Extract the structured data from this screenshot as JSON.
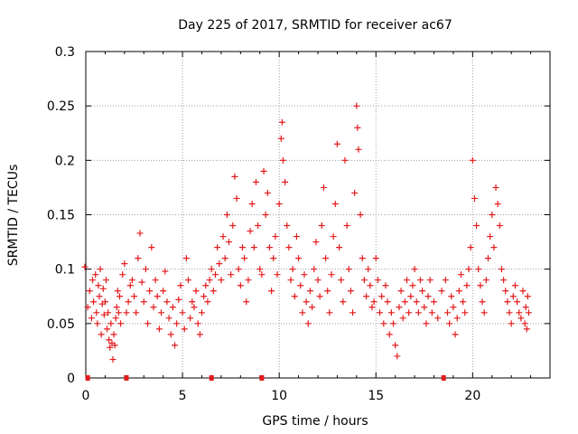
{
  "chart_data": {
    "type": "scatter",
    "title": "Day 225 of 2017, SRMTID for receiver ac67",
    "xlabel": "GPS time / hours",
    "ylabel": "SRMTID / TECUs",
    "xlim": [
      0,
      24
    ],
    "ylim": [
      0,
      0.3
    ],
    "grid": true,
    "marker": "+",
    "color": "#e41a1c",
    "xticks": [
      0,
      5,
      10,
      15,
      20
    ],
    "yticks": [
      0,
      0.05,
      0.1,
      0.15,
      0.2,
      0.25,
      0.3
    ],
    "xtick_labels": [
      "0",
      "5",
      "10",
      "15",
      "20"
    ],
    "ytick_labels": [
      "0",
      "0.05",
      "0.1",
      "0.15",
      "0.2",
      "0.25",
      "0.3"
    ],
    "zero_markers_x": [
      0.1,
      2.1,
      6.5,
      9.1,
      18.5
    ],
    "series": [
      {
        "name": "SRMTID",
        "points": [
          [
            -0.05,
            0.102
          ],
          [
            0.1,
            0.065
          ],
          [
            0.2,
            0.08
          ],
          [
            0.3,
            0.055
          ],
          [
            0.35,
            0.09
          ],
          [
            0.4,
            0.07
          ],
          [
            0.5,
            0.095
          ],
          [
            0.55,
            0.06
          ],
          [
            0.6,
            0.05
          ],
          [
            0.65,
            0.085
          ],
          [
            0.7,
            0.075
          ],
          [
            0.75,
            0.1
          ],
          [
            0.8,
            0.04
          ],
          [
            0.85,
            0.068
          ],
          [
            0.9,
            0.082
          ],
          [
            0.95,
            0.058
          ],
          [
            1.0,
            0.07
          ],
          [
            1.05,
            0.09
          ],
          [
            1.1,
            0.045
          ],
          [
            1.15,
            0.06
          ],
          [
            1.2,
            0.035
          ],
          [
            1.25,
            0.028
          ],
          [
            1.3,
            0.05
          ],
          [
            1.35,
            0.032
          ],
          [
            1.4,
            0.017
          ],
          [
            1.45,
            0.04
          ],
          [
            1.5,
            0.03
          ],
          [
            1.55,
            0.055
          ],
          [
            1.6,
            0.065
          ],
          [
            1.65,
            0.08
          ],
          [
            1.7,
            0.06
          ],
          [
            1.75,
            0.075
          ],
          [
            1.8,
            0.05
          ],
          [
            1.9,
            0.095
          ],
          [
            2.0,
            0.105
          ],
          [
            2.1,
            0.06
          ],
          [
            2.2,
            0.07
          ],
          [
            2.3,
            0.085
          ],
          [
            2.4,
            0.09
          ],
          [
            2.5,
            0.075
          ],
          [
            2.6,
            0.06
          ],
          [
            2.7,
            0.11
          ],
          [
            2.8,
            0.133
          ],
          [
            2.9,
            0.088
          ],
          [
            3.0,
            0.07
          ],
          [
            3.1,
            0.1
          ],
          [
            3.2,
            0.05
          ],
          [
            3.3,
            0.08
          ],
          [
            3.4,
            0.12
          ],
          [
            3.5,
            0.065
          ],
          [
            3.6,
            0.09
          ],
          [
            3.7,
            0.075
          ],
          [
            3.8,
            0.045
          ],
          [
            3.9,
            0.06
          ],
          [
            4.0,
            0.08
          ],
          [
            4.1,
            0.098
          ],
          [
            4.2,
            0.07
          ],
          [
            4.3,
            0.055
          ],
          [
            4.4,
            0.04
          ],
          [
            4.5,
            0.065
          ],
          [
            4.6,
            0.03
          ],
          [
            4.7,
            0.05
          ],
          [
            4.8,
            0.072
          ],
          [
            4.9,
            0.085
          ],
          [
            5.0,
            0.06
          ],
          [
            5.1,
            0.045
          ],
          [
            5.2,
            0.11
          ],
          [
            5.3,
            0.09
          ],
          [
            5.4,
            0.055
          ],
          [
            5.5,
            0.07
          ],
          [
            5.6,
            0.065
          ],
          [
            5.7,
            0.08
          ],
          [
            5.8,
            0.05
          ],
          [
            5.9,
            0.04
          ],
          [
            6.0,
            0.06
          ],
          [
            6.1,
            0.075
          ],
          [
            6.2,
            0.085
          ],
          [
            6.3,
            0.07
          ],
          [
            6.4,
            0.09
          ],
          [
            6.5,
            0.1
          ],
          [
            6.6,
            0.08
          ],
          [
            6.7,
            0.095
          ],
          [
            6.8,
            0.12
          ],
          [
            6.9,
            0.105
          ],
          [
            7.0,
            0.09
          ],
          [
            7.1,
            0.13
          ],
          [
            7.2,
            0.11
          ],
          [
            7.3,
            0.15
          ],
          [
            7.4,
            0.125
          ],
          [
            7.5,
            0.095
          ],
          [
            7.6,
            0.14
          ],
          [
            7.7,
            0.185
          ],
          [
            7.8,
            0.165
          ],
          [
            7.9,
            0.1
          ],
          [
            8.0,
            0.085
          ],
          [
            8.1,
            0.12
          ],
          [
            8.2,
            0.11
          ],
          [
            8.3,
            0.07
          ],
          [
            8.4,
            0.09
          ],
          [
            8.5,
            0.135
          ],
          [
            8.6,
            0.16
          ],
          [
            8.7,
            0.12
          ],
          [
            8.8,
            0.18
          ],
          [
            8.9,
            0.14
          ],
          [
            9.0,
            0.1
          ],
          [
            9.1,
            0.095
          ],
          [
            9.2,
            0.19
          ],
          [
            9.3,
            0.15
          ],
          [
            9.4,
            0.17
          ],
          [
            9.5,
            0.12
          ],
          [
            9.6,
            0.08
          ],
          [
            9.7,
            0.11
          ],
          [
            9.8,
            0.13
          ],
          [
            9.9,
            0.095
          ],
          [
            10.0,
            0.16
          ],
          [
            10.1,
            0.22
          ],
          [
            10.15,
            0.235
          ],
          [
            10.2,
            0.2
          ],
          [
            10.3,
            0.18
          ],
          [
            10.4,
            0.14
          ],
          [
            10.5,
            0.12
          ],
          [
            10.6,
            0.09
          ],
          [
            10.7,
            0.1
          ],
          [
            10.8,
            0.075
          ],
          [
            10.9,
            0.13
          ],
          [
            11.0,
            0.11
          ],
          [
            11.1,
            0.085
          ],
          [
            11.2,
            0.06
          ],
          [
            11.3,
            0.095
          ],
          [
            11.4,
            0.07
          ],
          [
            11.5,
            0.05
          ],
          [
            11.6,
            0.08
          ],
          [
            11.7,
            0.065
          ],
          [
            11.8,
            0.1
          ],
          [
            11.9,
            0.125
          ],
          [
            12.0,
            0.09
          ],
          [
            12.1,
            0.075
          ],
          [
            12.2,
            0.14
          ],
          [
            12.3,
            0.175
          ],
          [
            12.4,
            0.11
          ],
          [
            12.5,
            0.08
          ],
          [
            12.6,
            0.06
          ],
          [
            12.7,
            0.095
          ],
          [
            12.8,
            0.13
          ],
          [
            12.9,
            0.16
          ],
          [
            13.0,
            0.215
          ],
          [
            13.1,
            0.12
          ],
          [
            13.2,
            0.09
          ],
          [
            13.3,
            0.07
          ],
          [
            13.4,
            0.2
          ],
          [
            13.5,
            0.14
          ],
          [
            13.6,
            0.1
          ],
          [
            13.7,
            0.08
          ],
          [
            13.8,
            0.06
          ],
          [
            13.9,
            0.17
          ],
          [
            14.0,
            0.25
          ],
          [
            14.05,
            0.23
          ],
          [
            14.1,
            0.21
          ],
          [
            14.2,
            0.15
          ],
          [
            14.3,
            0.11
          ],
          [
            14.4,
            0.09
          ],
          [
            14.5,
            0.075
          ],
          [
            14.6,
            0.1
          ],
          [
            14.7,
            0.085
          ],
          [
            14.8,
            0.065
          ],
          [
            14.9,
            0.07
          ],
          [
            15.0,
            0.11
          ],
          [
            15.1,
            0.09
          ],
          [
            15.2,
            0.06
          ],
          [
            15.3,
            0.075
          ],
          [
            15.4,
            0.05
          ],
          [
            15.5,
            0.085
          ],
          [
            15.6,
            0.07
          ],
          [
            15.7,
            0.04
          ],
          [
            15.8,
            0.06
          ],
          [
            15.9,
            0.05
          ],
          [
            16.0,
            0.03
          ],
          [
            16.1,
            0.02
          ],
          [
            16.2,
            0.065
          ],
          [
            16.3,
            0.08
          ],
          [
            16.4,
            0.055
          ],
          [
            16.5,
            0.07
          ],
          [
            16.6,
            0.09
          ],
          [
            16.7,
            0.06
          ],
          [
            16.8,
            0.075
          ],
          [
            16.9,
            0.085
          ],
          [
            17.0,
            0.1
          ],
          [
            17.1,
            0.07
          ],
          [
            17.2,
            0.06
          ],
          [
            17.3,
            0.09
          ],
          [
            17.4,
            0.08
          ],
          [
            17.5,
            0.065
          ],
          [
            17.6,
            0.05
          ],
          [
            17.7,
            0.075
          ],
          [
            17.8,
            0.09
          ],
          [
            17.9,
            0.06
          ],
          [
            18.0,
            0.07
          ],
          [
            18.2,
            0.055
          ],
          [
            18.4,
            0.08
          ],
          [
            18.6,
            0.09
          ],
          [
            18.7,
            0.06
          ],
          [
            18.8,
            0.05
          ],
          [
            18.9,
            0.075
          ],
          [
            19.0,
            0.065
          ],
          [
            19.1,
            0.04
          ],
          [
            19.2,
            0.055
          ],
          [
            19.3,
            0.08
          ],
          [
            19.4,
            0.095
          ],
          [
            19.5,
            0.07
          ],
          [
            19.6,
            0.06
          ],
          [
            19.7,
            0.085
          ],
          [
            19.8,
            0.1
          ],
          [
            19.9,
            0.12
          ],
          [
            20.0,
            0.2
          ],
          [
            20.1,
            0.165
          ],
          [
            20.2,
            0.14
          ],
          [
            20.3,
            0.1
          ],
          [
            20.4,
            0.085
          ],
          [
            20.5,
            0.07
          ],
          [
            20.6,
            0.06
          ],
          [
            20.7,
            0.09
          ],
          [
            20.8,
            0.11
          ],
          [
            20.9,
            0.13
          ],
          [
            21.0,
            0.15
          ],
          [
            21.1,
            0.12
          ],
          [
            21.2,
            0.175
          ],
          [
            21.3,
            0.16
          ],
          [
            21.4,
            0.14
          ],
          [
            21.5,
            0.1
          ],
          [
            21.6,
            0.09
          ],
          [
            21.7,
            0.08
          ],
          [
            21.8,
            0.07
          ],
          [
            21.9,
            0.06
          ],
          [
            22.0,
            0.05
          ],
          [
            22.1,
            0.075
          ],
          [
            22.2,
            0.085
          ],
          [
            22.3,
            0.07
          ],
          [
            22.4,
            0.06
          ],
          [
            22.5,
            0.055
          ],
          [
            22.6,
            0.08
          ],
          [
            22.7,
            0.05
          ],
          [
            22.75,
            0.065
          ],
          [
            22.8,
            0.045
          ],
          [
            22.85,
            0.075
          ],
          [
            22.9,
            0.06
          ]
        ]
      }
    ]
  }
}
